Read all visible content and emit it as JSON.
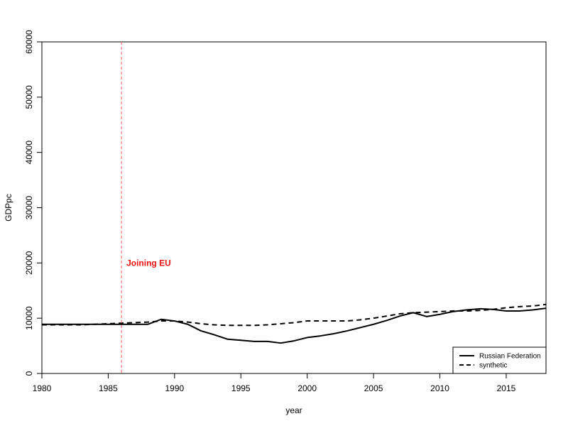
{
  "chart_data": {
    "type": "line",
    "title": "",
    "xlabel": "year",
    "ylabel": "GDPpc",
    "xlim": [
      1980,
      2018
    ],
    "ylim": [
      0,
      60000
    ],
    "xticks": [
      1980,
      1985,
      1990,
      1995,
      2000,
      2005,
      2010,
      2015
    ],
    "yticks": [
      0,
      10000,
      20000,
      30000,
      40000,
      50000,
      60000
    ],
    "grid": false,
    "legend_position": "bottom-right",
    "x": [
      1980,
      1981,
      1982,
      1983,
      1984,
      1985,
      1986,
      1987,
      1988,
      1989,
      1990,
      1991,
      1992,
      1993,
      1994,
      1995,
      1996,
      1997,
      1998,
      1999,
      2000,
      2001,
      2002,
      2003,
      2004,
      2005,
      2006,
      2007,
      2008,
      2009,
      2010,
      2011,
      2012,
      2013,
      2014,
      2015,
      2016,
      2017,
      2018
    ],
    "series": [
      {
        "name": "Russian Federation",
        "style": "solid",
        "color": "#000000",
        "values": [
          8900,
          8900,
          8900,
          8900,
          8900,
          8900,
          8900,
          8900,
          8900,
          9800,
          9500,
          8900,
          7700,
          7000,
          6200,
          6000,
          5800,
          5800,
          5500,
          5900,
          6500,
          6800,
          7200,
          7700,
          8300,
          8900,
          9600,
          10400,
          11000,
          10300,
          10700,
          11200,
          11500,
          11700,
          11600,
          11300,
          11300,
          11500,
          11800
        ]
      },
      {
        "name": "synthetic",
        "style": "dashed",
        "color": "#000000",
        "values": [
          8800,
          8800,
          8800,
          8800,
          8900,
          9000,
          9100,
          9200,
          9300,
          9500,
          9500,
          9300,
          9000,
          8800,
          8700,
          8700,
          8700,
          8800,
          9000,
          9200,
          9500,
          9500,
          9500,
          9500,
          9700,
          10000,
          10400,
          10800,
          11000,
          11100,
          11200,
          11300,
          11300,
          11400,
          11600,
          11900,
          12100,
          12200,
          12500
        ]
      }
    ],
    "annotations": [
      {
        "text": "Joining EU",
        "x": 1986,
        "y": 20000,
        "color": "#ee1111",
        "line_style": "dashed",
        "line_color": "#ff5555"
      }
    ]
  }
}
